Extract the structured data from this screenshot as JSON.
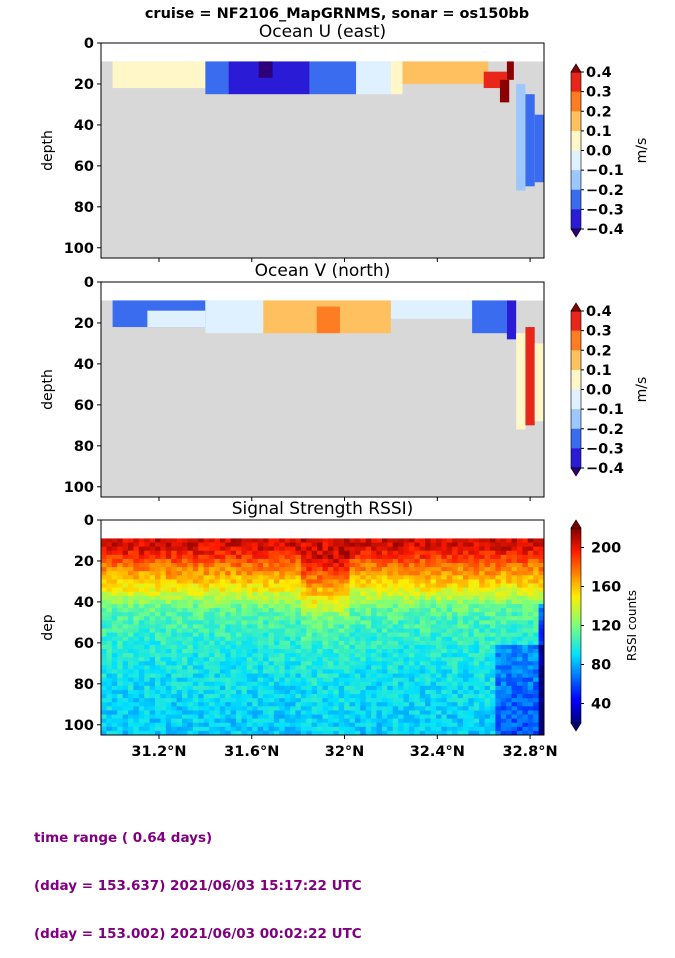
{
  "figure": {
    "suptitle": "cruise = NF2106_MapGRNMS,  sonar = os150bb",
    "footer_lines": [
      "time range ( 0.64 days)",
      "(dday = 153.637) 2021/06/03 15:17:22 UTC",
      "(dday = 153.002) 2021/06/03 00:02:22 UTC"
    ]
  },
  "colors": {
    "footer": "#800080",
    "nodata": "#d8d8d8"
  },
  "chart_data": [
    {
      "type": "heatmap",
      "title": "Ocean U (east)",
      "ylabel": "depth",
      "yticks": [
        "0",
        "20",
        "40",
        "60",
        "80",
        "100"
      ],
      "xticks": [],
      "ylim": [
        105,
        0
      ],
      "colorbar": {
        "label": "m/s",
        "ticks": [
          "0.4",
          "0.3",
          "0.2",
          "0.1",
          "0.0",
          "−0.1",
          "−0.2",
          "−0.3",
          "−0.4"
        ]
      },
      "cells": [
        {
          "x0": 31.0,
          "x1": 31.05,
          "d0": 9,
          "d1": 22,
          "v": 0.1
        },
        {
          "x0": 31.05,
          "x1": 31.4,
          "d0": 9,
          "d1": 22,
          "v": 0.0
        },
        {
          "x0": 31.4,
          "x1": 31.5,
          "d0": 9,
          "d1": 25,
          "v": -0.2
        },
        {
          "x0": 31.5,
          "x1": 31.85,
          "d0": 9,
          "d1": 25,
          "v": -0.35
        },
        {
          "x0": 31.63,
          "x1": 31.69,
          "d0": 9,
          "d1": 17,
          "v": -0.4
        },
        {
          "x0": 31.85,
          "x1": 32.05,
          "d0": 9,
          "d1": 25,
          "v": -0.2
        },
        {
          "x0": 32.05,
          "x1": 32.2,
          "d0": 9,
          "d1": 25,
          "v": -0.1
        },
        {
          "x0": 32.2,
          "x1": 32.25,
          "d0": 9,
          "d1": 25,
          "v": 0.0
        },
        {
          "x0": 32.25,
          "x1": 32.42,
          "d0": 9,
          "d1": 20,
          "v": 0.15
        },
        {
          "x0": 32.42,
          "x1": 32.62,
          "d0": 9,
          "d1": 20,
          "v": 0.2
        },
        {
          "x0": 32.6,
          "x1": 32.7,
          "d0": 14,
          "d1": 22,
          "v": 0.35
        },
        {
          "x0": 32.67,
          "x1": 32.71,
          "d0": 18,
          "d1": 29,
          "v": 0.45
        },
        {
          "x0": 32.7,
          "x1": 32.73,
          "d0": 9,
          "d1": 18,
          "v": 0.45
        },
        {
          "x0": 32.74,
          "x1": 32.78,
          "d0": 20,
          "d1": 72,
          "v": -0.15
        },
        {
          "x0": 32.78,
          "x1": 32.82,
          "d0": 25,
          "d1": 70,
          "v": -0.2
        },
        {
          "x0": 32.82,
          "x1": 32.86,
          "d0": 35,
          "d1": 68,
          "v": -0.3
        }
      ]
    },
    {
      "type": "heatmap",
      "title": "Ocean V (north)",
      "ylabel": "depth",
      "yticks": [
        "0",
        "20",
        "40",
        "60",
        "80",
        "100"
      ],
      "xticks": [],
      "ylim": [
        105,
        0
      ],
      "colorbar": {
        "label": "m/s",
        "ticks": [
          "0.4",
          "0.3",
          "0.2",
          "0.1",
          "0.0",
          "−0.1",
          "−0.2",
          "−0.3",
          "−0.4"
        ]
      },
      "cells": [
        {
          "x0": 31.0,
          "x1": 31.4,
          "d0": 9,
          "d1": 22,
          "v": -0.2
        },
        {
          "x0": 31.15,
          "x1": 31.4,
          "d0": 14,
          "d1": 22,
          "v": -0.1
        },
        {
          "x0": 31.4,
          "x1": 31.65,
          "d0": 9,
          "d1": 25,
          "v": -0.1
        },
        {
          "x0": 31.65,
          "x1": 32.2,
          "d0": 9,
          "d1": 25,
          "v": 0.15
        },
        {
          "x0": 31.88,
          "x1": 31.98,
          "d0": 12,
          "d1": 25,
          "v": 0.25
        },
        {
          "x0": 32.2,
          "x1": 32.55,
          "d0": 9,
          "d1": 18,
          "v": -0.1
        },
        {
          "x0": 32.55,
          "x1": 32.7,
          "d0": 9,
          "d1": 25,
          "v": -0.2
        },
        {
          "x0": 32.7,
          "x1": 32.74,
          "d0": 9,
          "d1": 28,
          "v": -0.35
        },
        {
          "x0": 32.74,
          "x1": 32.78,
          "d0": 25,
          "d1": 72,
          "v": 0.1
        },
        {
          "x0": 32.78,
          "x1": 32.82,
          "d0": 22,
          "d1": 70,
          "v": 0.3
        },
        {
          "x0": 32.82,
          "x1": 32.86,
          "d0": 30,
          "d1": 68,
          "v": 0.1
        }
      ]
    },
    {
      "type": "heatmap",
      "title": "Signal Strength RSSI)",
      "ylabel": "dep",
      "yticks": [
        "0",
        "20",
        "40",
        "60",
        "80",
        "100"
      ],
      "xticks": [
        "31.2°N",
        "31.6°N",
        "32°N",
        "32.4°N",
        "32.8°N"
      ],
      "ylim": [
        105,
        0
      ],
      "colorbar": {
        "label": "RSSI counts",
        "ticks": [
          "200",
          "160",
          "120",
          "80",
          "40"
        ]
      },
      "profile": {
        "depth": [
          12,
          16,
          20,
          24,
          28,
          32,
          36,
          40,
          44,
          48,
          52,
          56,
          60,
          66,
          72,
          80,
          88,
          96,
          104
        ],
        "rssi": [
          205,
          195,
          180,
          170,
          160,
          150,
          135,
          120,
          112,
          108,
          105,
          102,
          100,
          97,
          95,
          92,
          90,
          88,
          86
        ]
      }
    }
  ]
}
